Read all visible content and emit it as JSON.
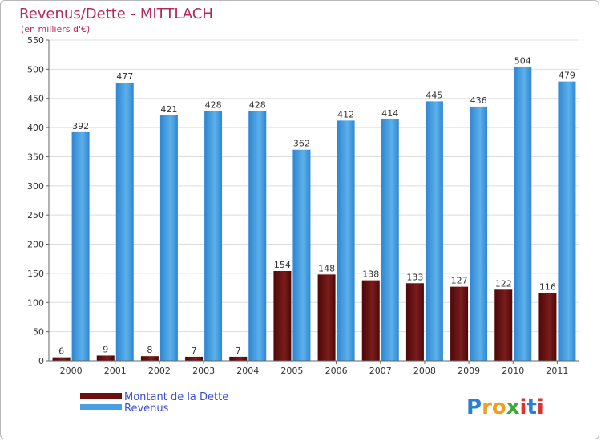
{
  "chart_data": {
    "type": "bar",
    "title": "Revenus/Dette - MITTLACH",
    "subtitle": "(en milliers d'€)",
    "categories": [
      "2000",
      "2001",
      "2002",
      "2003",
      "2004",
      "2005",
      "2006",
      "2007",
      "2008",
      "2009",
      "2010",
      "2011"
    ],
    "series": [
      {
        "name": "Montant de la Dette",
        "color": "#6b0f0f",
        "values": [
          6,
          9,
          8,
          7,
          7,
          154,
          148,
          138,
          133,
          127,
          122,
          116
        ]
      },
      {
        "name": "Revenus",
        "color": "#4a9fe0",
        "values": [
          392,
          477,
          421,
          428,
          428,
          362,
          412,
          414,
          445,
          436,
          504,
          479
        ]
      }
    ],
    "ylim": [
      0,
      550
    ],
    "yticks": [
      0,
      50,
      100,
      150,
      200,
      250,
      300,
      350,
      400,
      450,
      500,
      550
    ],
    "grid": true,
    "legend_position": "bottom-left"
  },
  "branding": {
    "letters": [
      "P",
      "r",
      "o",
      "x",
      "i",
      "t",
      "i"
    ],
    "colors": [
      "#2a7fd4",
      "#f0a020",
      "#f0a020",
      "#3aa83a",
      "#e03030",
      "#2a7fd4",
      "#e03030"
    ]
  }
}
